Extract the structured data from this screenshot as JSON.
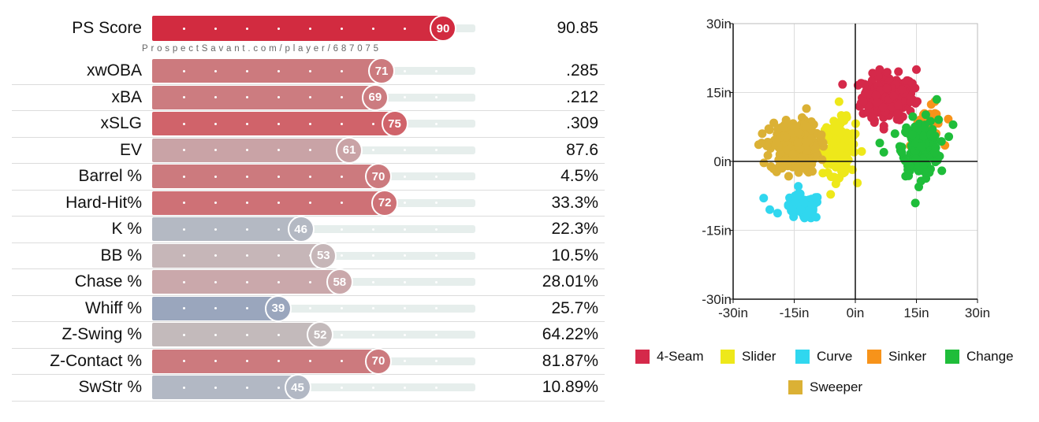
{
  "metrics_panel": {
    "watermark": "ProspectSavant.com/player/687075",
    "rows": [
      {
        "label": "PS Score",
        "percentile": 90,
        "value": "90.85",
        "color": "#d22b40"
      },
      {
        "label": "xwOBA",
        "percentile": 71,
        "value": ".285",
        "color": "#cc7a7e"
      },
      {
        "label": "xBA",
        "percentile": 69,
        "value": ".212",
        "color": "#cc7c80"
      },
      {
        "label": "xSLG",
        "percentile": 75,
        "value": ".309",
        "color": "#d0636a"
      },
      {
        "label": "EV",
        "percentile": 61,
        "value": "87.6",
        "color": "#c9a3a6"
      },
      {
        "label": "Barrel %",
        "percentile": 70,
        "value": "4.5%",
        "color": "#cc7a7e"
      },
      {
        "label": "Hard-Hit%",
        "percentile": 72,
        "value": "33.3%",
        "color": "#ce7176"
      },
      {
        "label": "K %",
        "percentile": 46,
        "value": "22.3%",
        "color": "#b4b9c3"
      },
      {
        "label": "BB %",
        "percentile": 53,
        "value": "10.5%",
        "color": "#c6b6b8"
      },
      {
        "label": "Chase %",
        "percentile": 58,
        "value": "28.01%",
        "color": "#caa8ab"
      },
      {
        "label": "Whiff %",
        "percentile": 39,
        "value": "25.7%",
        "color": "#9aa6bd"
      },
      {
        "label": "Z-Swing %",
        "percentile": 52,
        "value": "64.22%",
        "color": "#c3babb"
      },
      {
        "label": "Z-Contact %",
        "percentile": 70,
        "value": "81.87%",
        "color": "#cc7a7e"
      },
      {
        "label": "SwStr %",
        "percentile": 45,
        "value": "10.89%",
        "color": "#b2b8c4"
      }
    ]
  },
  "chart_data": {
    "type": "scatter",
    "title": "",
    "xlabel": "",
    "ylabel": "",
    "xlim": [
      -30,
      30
    ],
    "ylim": [
      -30,
      30
    ],
    "x_ticks": [
      "-30in",
      "-15in",
      "0in",
      "15in",
      "30in"
    ],
    "y_ticks": [
      "30in",
      "15in",
      "0in",
      "-15in",
      "-30in"
    ],
    "x_tick_values": [
      -30,
      -15,
      0,
      15,
      30
    ],
    "y_tick_values": [
      30,
      15,
      0,
      -15,
      -30
    ],
    "series": [
      {
        "name": "4-Seam",
        "color": "#d5294a",
        "center": [
          8,
          14
        ],
        "spread": [
          3.2,
          2.4
        ],
        "count": 220,
        "points": [
          [
            1.5,
            17
          ],
          [
            15,
            20
          ],
          [
            2,
            13
          ],
          [
            4,
            9.5
          ],
          [
            14,
            17
          ],
          [
            7,
            7
          ]
        ]
      },
      {
        "name": "Slider",
        "color": "#eee81a",
        "center": [
          -4,
          3
        ],
        "spread": [
          2.0,
          3.0
        ],
        "count": 140,
        "points": [
          [
            -4,
            13
          ],
          [
            -4.5,
            -4
          ],
          [
            0,
            6
          ]
        ]
      },
      {
        "name": "Curve",
        "color": "#30d7ef",
        "center": [
          -13,
          -10
        ],
        "spread": [
          2.3,
          1.4
        ],
        "count": 70,
        "points": [
          [
            -22.5,
            -8
          ],
          [
            -21,
            -10.5
          ]
        ]
      },
      {
        "name": "Sinker",
        "color": "#f7931a",
        "center": [
          18,
          8
        ],
        "spread": [
          2.0,
          1.8
        ],
        "count": 35,
        "points": [
          [
            19.5,
            13
          ],
          [
            22,
            3.5
          ]
        ]
      },
      {
        "name": "Change",
        "color": "#1fbd3a",
        "center": [
          16,
          3
        ],
        "spread": [
          2.2,
          3.0
        ],
        "count": 200,
        "points": [
          [
            20,
            13.5
          ],
          [
            24,
            8
          ],
          [
            6,
            4
          ],
          [
            7,
            2
          ]
        ]
      },
      {
        "name": "Sweeper",
        "color": "#dbb135",
        "center": [
          -15,
          3
        ],
        "spread": [
          3.0,
          2.8
        ],
        "count": 230,
        "points": [
          [
            -23,
            4
          ],
          [
            -18,
            -1.5
          ],
          [
            -12,
            11.5
          ],
          [
            -17,
            9
          ]
        ]
      }
    ]
  },
  "legend": {
    "items": [
      {
        "name": "4-Seam",
        "color": "#d5294a"
      },
      {
        "name": "Slider",
        "color": "#eee81a"
      },
      {
        "name": "Curve",
        "color": "#30d7ef"
      },
      {
        "name": "Sinker",
        "color": "#f7931a"
      },
      {
        "name": "Change",
        "color": "#1fbd3a"
      },
      {
        "name": "Sweeper",
        "color": "#dbb135"
      }
    ]
  }
}
